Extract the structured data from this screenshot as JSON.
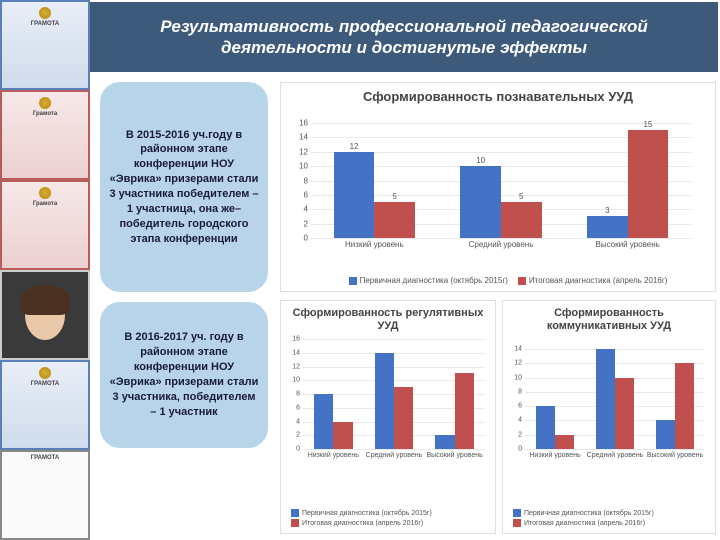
{
  "header": {
    "title": "Результативность профессиональной педагогической деятельности  и достигнутые эффекты"
  },
  "left_certificates": [
    {
      "label": "ГРАМОТА",
      "style": "blue"
    },
    {
      "label": "Грамота",
      "style": "red"
    },
    {
      "label": "Грамота",
      "style": "red"
    },
    {
      "label": "",
      "style": "photo"
    },
    {
      "label": "ГРАМОТА",
      "style": "blue"
    },
    {
      "label": "ГРАМОТА",
      "style": "white"
    }
  ],
  "bubbles": {
    "b1": "В 2015-2016 уч.году в районном этапе конференции НОУ «Эврика» призерами стали 3 участника победителем – 1 участница, она же– победитель городского этапа конференции",
    "b2": "В 2016-2017 уч. году в районном этапе конференции НОУ «Эврика» призерами стали 3 участника, победителем – 1 участник"
  },
  "chart1": {
    "type": "bar",
    "title": "Сформированность познавательных УУД",
    "categories": [
      "Низкий уровень",
      "Средний уровень",
      "Высокий уровень"
    ],
    "series": [
      {
        "name": "Первичная диагностика (октябрь 2015г)",
        "color": "#4472c4",
        "values": [
          12,
          10,
          3
        ]
      },
      {
        "name": "Итоговая диагностика (апрель 2016г)",
        "color": "#c0504d",
        "values": [
          5,
          5,
          15
        ]
      }
    ],
    "ylim": [
      0,
      16
    ],
    "ytick_step": 2,
    "grid_color": "#e8e8e8",
    "background_color": "#ffffff",
    "bar_width": 0.32,
    "label_fontsize": 8
  },
  "chart2": {
    "type": "bar",
    "title": "Сформированность регулятивных УУД",
    "categories": [
      "Низкий уровень",
      "Средний уровень",
      "Высокий уровень"
    ],
    "series": [
      {
        "name": "Первичная диагностика (октябрь 2015г)",
        "color": "#4472c4",
        "values": [
          8,
          14,
          2
        ]
      },
      {
        "name": "Итоговая диагностика (апрель 2016г)",
        "color": "#c0504d",
        "values": [
          4,
          9,
          11
        ]
      }
    ],
    "ylim": [
      0,
      16
    ],
    "ytick_step": 2,
    "grid_color": "#e8e8e8",
    "background_color": "#ffffff",
    "bar_width": 0.32,
    "label_fontsize": 7
  },
  "chart3": {
    "type": "bar",
    "title": "Сформированность коммуникативных УУД",
    "categories": [
      "Низкий уровень",
      "Средний уровень",
      "Высокий уровень"
    ],
    "series": [
      {
        "name": "Первичная диагностика (октябрь 2015г)",
        "color": "#4472c4",
        "values": [
          6,
          14,
          4
        ]
      },
      {
        "name": "Итоговая диагностика (апрель 2016г)",
        "color": "#c0504d",
        "values": [
          2,
          10,
          12
        ]
      }
    ],
    "ylim": [
      0,
      14
    ],
    "ytick_step": 2,
    "grid_color": "#e8e8e8",
    "background_color": "#ffffff",
    "bar_width": 0.32,
    "label_fontsize": 7
  }
}
